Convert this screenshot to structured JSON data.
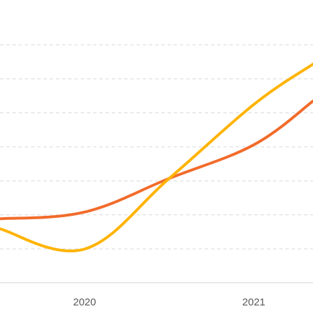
{
  "chart_data": {
    "type": "line",
    "x_ticks": [
      "2020",
      "2021"
    ],
    "grid": "horizontal-dashed",
    "y_gridline_count": 7,
    "series": [
      {
        "color": "#f26b2a",
        "points": [
          {
            "x": 2019.5,
            "y": 1.8
          },
          {
            "x": 2020,
            "y": 2.0
          },
          {
            "x": 2020.5,
            "y": 3.0
          },
          {
            "x": 2021,
            "y": 4.0
          },
          {
            "x": 2021.35,
            "y": 5.3
          }
        ]
      },
      {
        "color": "#ffb300",
        "points": [
          {
            "x": 2019.5,
            "y": 1.5
          },
          {
            "x": 2020,
            "y": 0.9
          },
          {
            "x": 2020.5,
            "y": 3.0
          },
          {
            "x": 2021,
            "y": 5.2
          },
          {
            "x": 2021.35,
            "y": 6.4
          }
        ]
      }
    ],
    "x_range": [
      2019.5,
      2021.35
    ],
    "y_range": [
      -0.1,
      8.0
    ]
  }
}
